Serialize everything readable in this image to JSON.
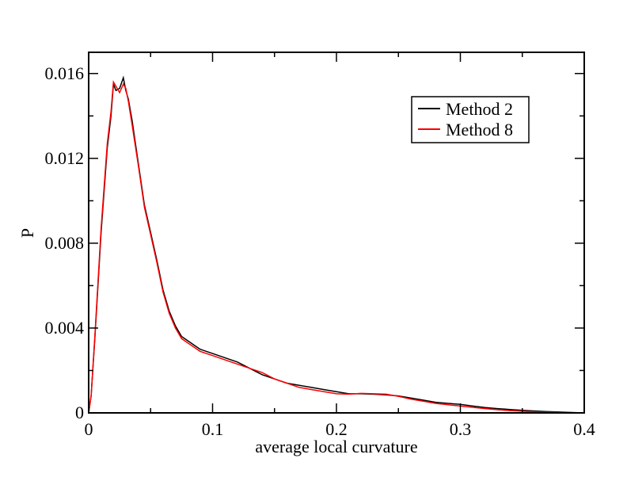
{
  "chart_data": {
    "type": "line",
    "title": "",
    "xlabel": "average local curvature",
    "ylabel": "P",
    "xlim": [
      0,
      0.4
    ],
    "ylim": [
      0,
      0.017
    ],
    "xticks": [
      0,
      0.1,
      0.2,
      0.3,
      0.4
    ],
    "xtick_labels": [
      "0",
      "0.1",
      "0.2",
      "0.3",
      "0.4"
    ],
    "yticks": [
      0,
      0.004,
      0.008,
      0.012,
      0.016
    ],
    "ytick_labels": [
      "0",
      "0.004",
      "0.008",
      "0.012",
      "0.016"
    ],
    "grid": false,
    "legend_position": "top-right",
    "series": [
      {
        "name": "Method 2",
        "color": "#000000",
        "x": [
          0,
          0.002,
          0.005,
          0.01,
          0.015,
          0.018,
          0.02,
          0.022,
          0.025,
          0.028,
          0.03,
          0.032,
          0.035,
          0.04,
          0.045,
          0.05,
          0.055,
          0.06,
          0.065,
          0.07,
          0.075,
          0.08,
          0.085,
          0.09,
          0.1,
          0.11,
          0.12,
          0.13,
          0.14,
          0.15,
          0.16,
          0.17,
          0.18,
          0.19,
          0.2,
          0.21,
          0.22,
          0.23,
          0.24,
          0.25,
          0.26,
          0.27,
          0.28,
          0.29,
          0.3,
          0.31,
          0.32,
          0.33,
          0.34,
          0.35,
          0.36,
          0.37,
          0.38,
          0.39,
          0.4
        ],
        "y": [
          0,
          0.0008,
          0.0035,
          0.0085,
          0.0125,
          0.014,
          0.0155,
          0.0152,
          0.0153,
          0.0158,
          0.0152,
          0.0148,
          0.0138,
          0.0118,
          0.0098,
          0.0085,
          0.0072,
          0.0058,
          0.0048,
          0.0041,
          0.0036,
          0.0034,
          0.0032,
          0.003,
          0.0028,
          0.0026,
          0.0024,
          0.0021,
          0.0018,
          0.0016,
          0.0014,
          0.0013,
          0.0012,
          0.0011,
          0.001,
          0.0009,
          0.0009,
          0.00088,
          0.00085,
          0.0008,
          0.0007,
          0.0006,
          0.0005,
          0.00045,
          0.0004,
          0.00032,
          0.00025,
          0.0002,
          0.00016,
          0.00012,
          9e-05,
          6e-05,
          4e-05,
          2e-05,
          0.0
        ]
      },
      {
        "name": "Method 8",
        "color": "#ff0000",
        "x": [
          0,
          0.002,
          0.005,
          0.01,
          0.015,
          0.018,
          0.02,
          0.022,
          0.025,
          0.028,
          0.03,
          0.032,
          0.035,
          0.04,
          0.045,
          0.05,
          0.055,
          0.06,
          0.065,
          0.07,
          0.075,
          0.08,
          0.085,
          0.09,
          0.1,
          0.11,
          0.12,
          0.13,
          0.14,
          0.15,
          0.16,
          0.17,
          0.18,
          0.19,
          0.2,
          0.21,
          0.22,
          0.23,
          0.24,
          0.25,
          0.26,
          0.27,
          0.28,
          0.29,
          0.3,
          0.31,
          0.32,
          0.33,
          0.34,
          0.35,
          0.36,
          0.37,
          0.38,
          0.39,
          0.4
        ],
        "y": [
          0,
          0.0008,
          0.0036,
          0.0087,
          0.0127,
          0.0142,
          0.0156,
          0.0154,
          0.0151,
          0.0155,
          0.0153,
          0.0147,
          0.0136,
          0.0117,
          0.0097,
          0.0084,
          0.0071,
          0.0057,
          0.0047,
          0.004,
          0.0035,
          0.0033,
          0.0031,
          0.0029,
          0.0027,
          0.0025,
          0.0023,
          0.0021,
          0.0019,
          0.0016,
          0.0014,
          0.0012,
          0.0011,
          0.001,
          0.0009,
          0.00088,
          0.00092,
          0.0009,
          0.00088,
          0.00078,
          0.00065,
          0.00055,
          0.00045,
          0.00038,
          0.00032,
          0.00026,
          0.0002,
          0.00015,
          0.00011,
          8e-05,
          5e-05,
          3e-05,
          2e-05,
          1e-05,
          0.0
        ]
      }
    ]
  }
}
